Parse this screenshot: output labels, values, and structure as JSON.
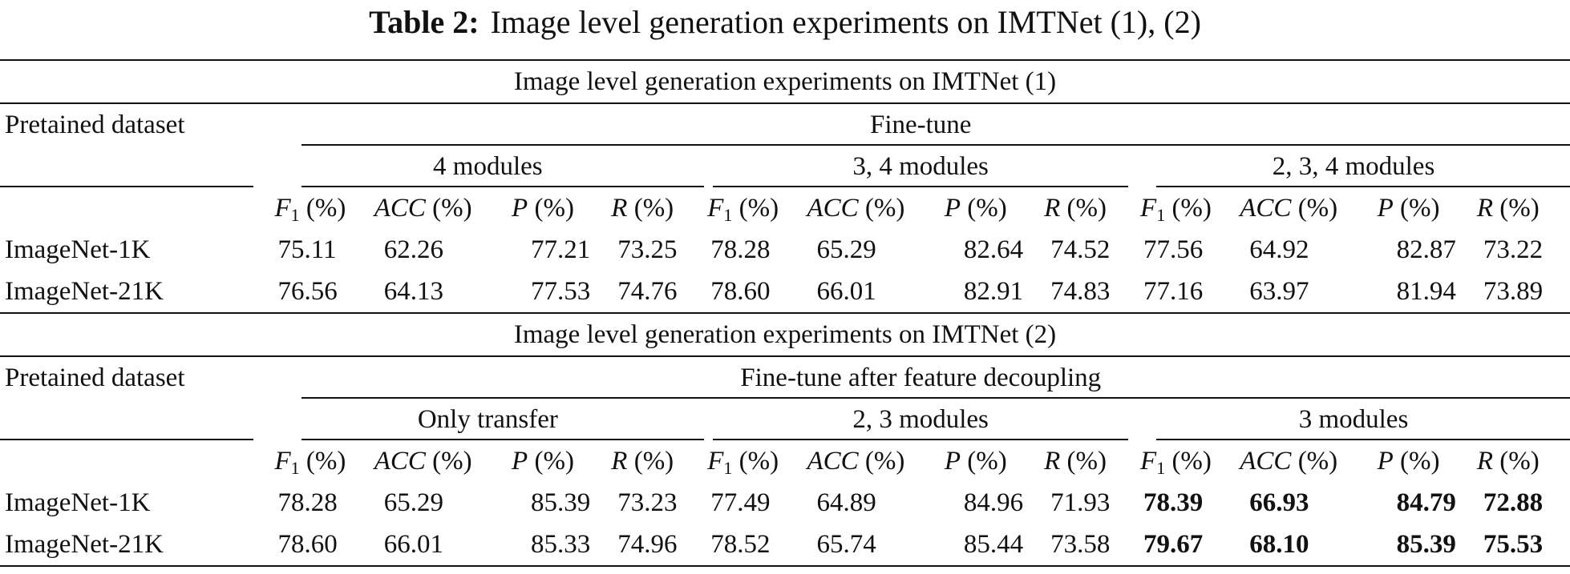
{
  "caption": {
    "label": "Table 2:",
    "text": "Image level generation experiments on IMTNet (1), (2)"
  },
  "metric_headers": [
    {
      "sym": "F",
      "sub": "1",
      "unit": " (%)"
    },
    {
      "sym": "ACC",
      "sub": "",
      "unit": " (%)"
    },
    {
      "sym": "P",
      "sub": "",
      "unit": " (%)"
    },
    {
      "sym": "R",
      "sub": "",
      "unit": " (%)"
    }
  ],
  "sections": [
    {
      "title": "Image level generation experiments on IMTNet (1)",
      "pretrained_label": "Pretained dataset",
      "group_label": "Fine-tune",
      "subgroups": [
        "4 modules",
        "3, 4 modules",
        "2, 3, 4 modules"
      ],
      "rows": [
        {
          "dataset": "ImageNet-1K",
          "values": [
            "75.11",
            "62.26",
            "77.21",
            "73.25",
            "78.28",
            "65.29",
            "82.64",
            "74.52",
            "77.56",
            "64.92",
            "82.87",
            "73.22"
          ],
          "bold": [
            false,
            false,
            false,
            false,
            false,
            false,
            false,
            false,
            false,
            false,
            false,
            false
          ]
        },
        {
          "dataset": "ImageNet-21K",
          "values": [
            "76.56",
            "64.13",
            "77.53",
            "74.76",
            "78.60",
            "66.01",
            "82.91",
            "74.83",
            "77.16",
            "63.97",
            "81.94",
            "73.89"
          ],
          "bold": [
            false,
            false,
            false,
            false,
            false,
            false,
            false,
            false,
            false,
            false,
            false,
            false
          ]
        }
      ]
    },
    {
      "title": "Image level generation experiments on IMTNet (2)",
      "pretrained_label": "Pretained dataset",
      "group_label": "Fine-tune after feature decoupling",
      "subgroups": [
        "Only transfer",
        "2, 3 modules",
        "3 modules"
      ],
      "rows": [
        {
          "dataset": "ImageNet-1K",
          "values": [
            "78.28",
            "65.29",
            "85.39",
            "73.23",
            "77.49",
            "64.89",
            "84.96",
            "71.93",
            "78.39",
            "66.93",
            "84.79",
            "72.88"
          ],
          "bold": [
            false,
            false,
            false,
            false,
            false,
            false,
            false,
            false,
            true,
            true,
            true,
            true
          ]
        },
        {
          "dataset": "ImageNet-21K",
          "values": [
            "78.60",
            "66.01",
            "85.33",
            "74.96",
            "78.52",
            "65.74",
            "85.44",
            "73.58",
            "79.67",
            "68.10",
            "85.39",
            "75.53"
          ],
          "bold": [
            false,
            false,
            false,
            false,
            false,
            false,
            false,
            false,
            true,
            true,
            true,
            true
          ]
        }
      ]
    }
  ]
}
